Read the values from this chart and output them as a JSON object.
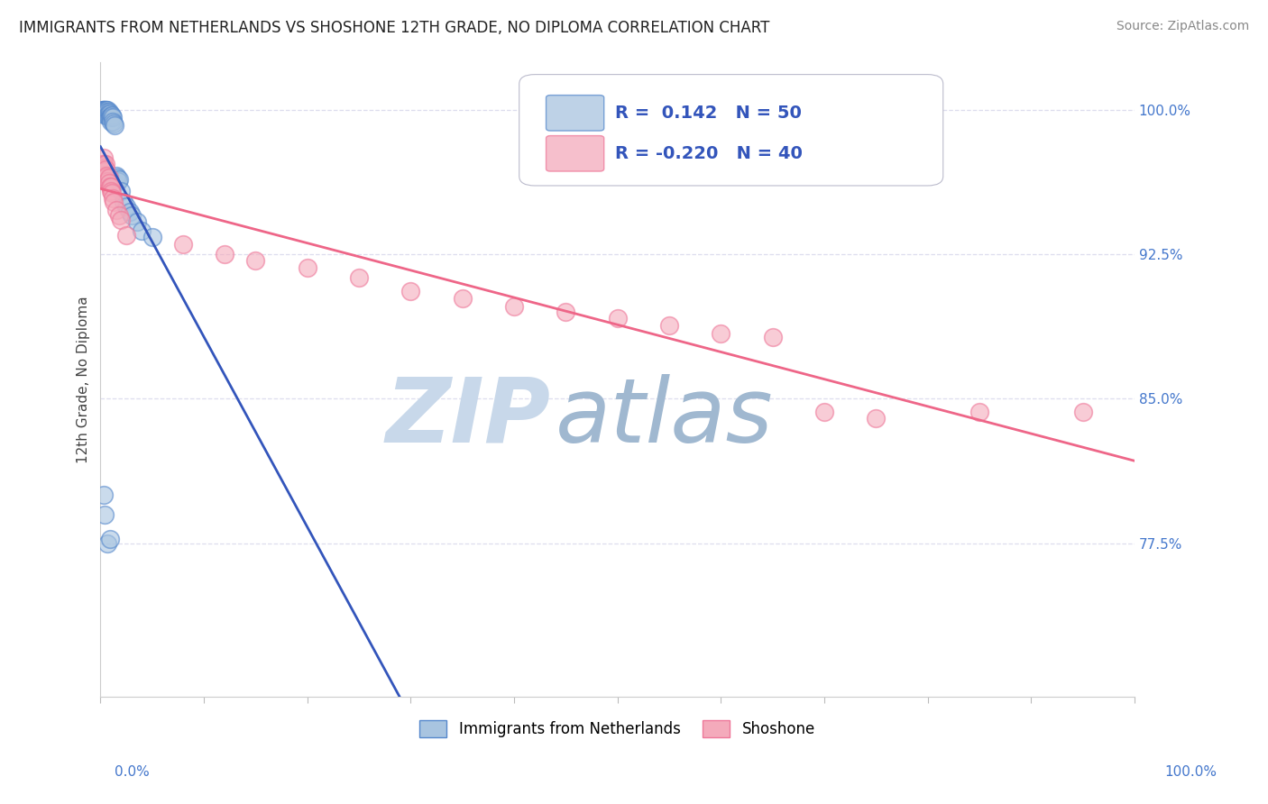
{
  "title": "IMMIGRANTS FROM NETHERLANDS VS SHOSHONE 12TH GRADE, NO DIPLOMA CORRELATION CHART",
  "source": "Source: ZipAtlas.com",
  "ylabel_left": "12th Grade, No Diploma",
  "ytick_labels": [
    "100.0%",
    "92.5%",
    "85.0%",
    "77.5%"
  ],
  "ytick_values": [
    1.0,
    0.925,
    0.85,
    0.775
  ],
  "xlim": [
    0.0,
    1.0
  ],
  "ylim": [
    0.695,
    1.025
  ],
  "r_blue": 0.142,
  "n_blue": 50,
  "r_pink": -0.22,
  "n_pink": 40,
  "blue_color": "#A8C4E0",
  "pink_color": "#F4AABB",
  "blue_edge_color": "#5588CC",
  "pink_edge_color": "#EE7799",
  "blue_line_color": "#3355BB",
  "pink_line_color": "#EE6688",
  "grid_color": "#DDDDEE",
  "watermark_zip_color": "#C8D8EA",
  "watermark_atlas_color": "#A0B8D0",
  "blue_x": [
    0.001,
    0.001,
    0.002,
    0.002,
    0.002,
    0.003,
    0.003,
    0.003,
    0.004,
    0.004,
    0.004,
    0.005,
    0.005,
    0.005,
    0.005,
    0.005,
    0.006,
    0.006,
    0.007,
    0.007,
    0.007,
    0.008,
    0.008,
    0.008,
    0.009,
    0.009,
    0.01,
    0.01,
    0.01,
    0.011,
    0.012,
    0.012,
    0.013,
    0.014,
    0.015,
    0.016,
    0.017,
    0.018,
    0.02,
    0.022,
    0.025,
    0.028,
    0.03,
    0.035,
    0.04,
    0.05,
    0.003,
    0.004,
    0.007,
    0.009
  ],
  "blue_y": [
    0.999,
    0.998,
    1.0,
    1.0,
    0.999,
    1.0,
    1.0,
    0.999,
    1.0,
    0.999,
    0.998,
    1.0,
    1.0,
    0.999,
    0.998,
    0.997,
    1.0,
    0.999,
    1.0,
    0.999,
    0.997,
    0.999,
    0.998,
    0.996,
    0.998,
    0.996,
    0.997,
    0.996,
    0.994,
    0.997,
    0.996,
    0.994,
    0.993,
    0.992,
    0.966,
    0.965,
    0.963,
    0.964,
    0.958,
    0.952,
    0.95,
    0.947,
    0.945,
    0.942,
    0.937,
    0.934,
    0.8,
    0.79,
    0.775,
    0.777
  ],
  "pink_x": [
    0.001,
    0.002,
    0.003,
    0.003,
    0.004,
    0.004,
    0.005,
    0.005,
    0.005,
    0.006,
    0.007,
    0.008,
    0.008,
    0.009,
    0.01,
    0.01,
    0.011,
    0.012,
    0.013,
    0.015,
    0.018,
    0.02,
    0.025,
    0.08,
    0.12,
    0.15,
    0.2,
    0.25,
    0.3,
    0.35,
    0.4,
    0.45,
    0.5,
    0.55,
    0.6,
    0.65,
    0.7,
    0.75,
    0.85,
    0.95
  ],
  "pink_y": [
    0.972,
    0.971,
    0.975,
    0.972,
    0.97,
    0.968,
    0.972,
    0.969,
    0.965,
    0.966,
    0.963,
    0.965,
    0.962,
    0.96,
    0.96,
    0.958,
    0.957,
    0.954,
    0.952,
    0.948,
    0.945,
    0.943,
    0.935,
    0.93,
    0.925,
    0.922,
    0.918,
    0.913,
    0.906,
    0.902,
    0.898,
    0.895,
    0.892,
    0.888,
    0.884,
    0.882,
    0.843,
    0.84,
    0.843,
    0.843
  ]
}
